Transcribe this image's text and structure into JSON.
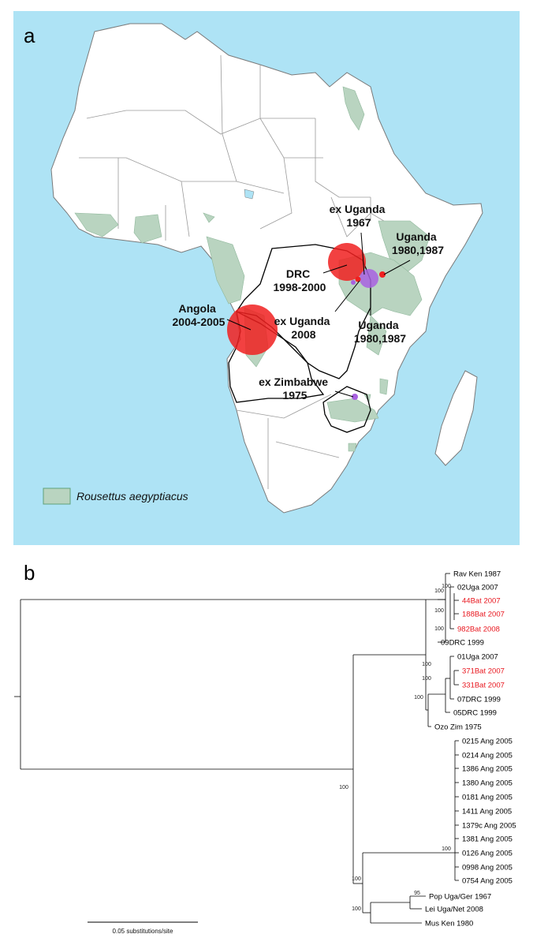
{
  "panels": {
    "a": "a",
    "b": "b"
  },
  "map": {
    "labels": {
      "ex_uganda_1967": [
        "ex Uganda",
        "1967"
      ],
      "uganda_top": [
        "Uganda",
        "1980,1987"
      ],
      "drc": [
        "DRC",
        "1998-2000"
      ],
      "angola": [
        "Angola",
        "2004-2005"
      ],
      "ex_uganda_2008": [
        "ex Uganda",
        "2008"
      ],
      "uganda_bottom": [
        "Uganda",
        "1980,1987"
      ],
      "ex_zimbabwe": [
        "ex Zimbabwe",
        "1975"
      ]
    },
    "legend": "Rousettus aegyptiacus",
    "colors": {
      "ocean": "#aee3f5",
      "land": "#ffffff",
      "range": "#b9d4c0",
      "red_marker": "#f02020",
      "purple_marker": "#a860e0"
    }
  },
  "tree": {
    "leaves": [
      {
        "label": "Rav Ken 1987",
        "color": "#000000"
      },
      {
        "label": "02Uga 2007",
        "color": "#000000"
      },
      {
        "label": "44Bat 2007",
        "color": "#e8141c"
      },
      {
        "label": "188Bat 2007",
        "color": "#e8141c"
      },
      {
        "label": "982Bat 2008",
        "color": "#e8141c"
      },
      {
        "label": "09DRC 1999",
        "color": "#000000"
      },
      {
        "label": "01Uga 2007",
        "color": "#000000"
      },
      {
        "label": "371Bat 2007",
        "color": "#e8141c"
      },
      {
        "label": "331Bat 2007",
        "color": "#e8141c"
      },
      {
        "label": "07DRC 1999",
        "color": "#000000"
      },
      {
        "label": "05DRC 1999",
        "color": "#000000"
      },
      {
        "label": "Ozo Zim 1975",
        "color": "#000000"
      },
      {
        "label": "0215 Ang 2005",
        "color": "#000000"
      },
      {
        "label": "0214 Ang 2005",
        "color": "#000000"
      },
      {
        "label": "1386 Ang 2005",
        "color": "#000000"
      },
      {
        "label": "1380 Ang 2005",
        "color": "#000000"
      },
      {
        "label": "0181 Ang 2005",
        "color": "#000000"
      },
      {
        "label": "1411 Ang 2005",
        "color": "#000000"
      },
      {
        "label": "1379c Ang 2005",
        "color": "#000000"
      },
      {
        "label": "1381 Ang 2005",
        "color": "#000000"
      },
      {
        "label": "0126 Ang 2005",
        "color": "#000000"
      },
      {
        "label": "0998 Ang 2005",
        "color": "#000000"
      },
      {
        "label": "0754 Ang 2005",
        "color": "#000000"
      },
      {
        "label": "Pop Uga/Ger 1967",
        "color": "#000000"
      },
      {
        "label": "Lei Uga/Net 2008",
        "color": "#000000"
      },
      {
        "label": "Mus Ken 1980",
        "color": "#000000"
      }
    ],
    "support_values": [
      "100",
      "100",
      "100",
      "100",
      "100",
      "100",
      "100",
      "100",
      "100",
      "95",
      "100",
      "100"
    ],
    "scale_label": "0.05 substitutions/site"
  }
}
